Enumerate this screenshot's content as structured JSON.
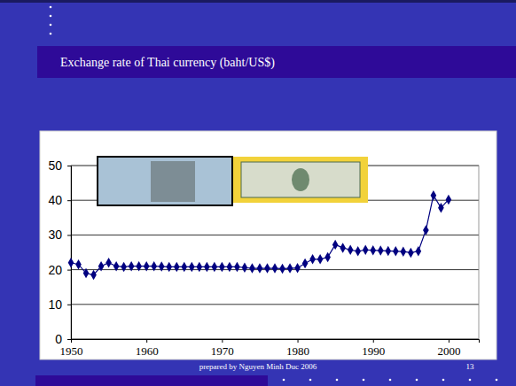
{
  "chart_data": {
    "type": "line",
    "title": "Exchange rate of Thai currency (baht/US$)",
    "x": [
      1950,
      1951,
      1952,
      1953,
      1954,
      1955,
      1956,
      1957,
      1958,
      1959,
      1960,
      1961,
      1962,
      1963,
      1964,
      1965,
      1966,
      1967,
      1968,
      1969,
      1970,
      1971,
      1972,
      1973,
      1974,
      1975,
      1976,
      1977,
      1978,
      1979,
      1980,
      1981,
      1982,
      1983,
      1984,
      1985,
      1986,
      1987,
      1988,
      1989,
      1990,
      1991,
      1992,
      1993,
      1994,
      1995,
      1996,
      1997,
      1998,
      1999,
      2000
    ],
    "values": [
      22,
      21.5,
      19,
      18.5,
      21,
      22,
      21,
      20.8,
      21,
      21,
      21,
      21,
      20.9,
      20.8,
      20.8,
      20.8,
      20.8,
      20.8,
      20.8,
      20.8,
      20.8,
      20.8,
      20.8,
      20.6,
      20.4,
      20.4,
      20.4,
      20.4,
      20.3,
      20.4,
      20.5,
      21.8,
      23,
      23,
      23.6,
      27.2,
      26.3,
      25.7,
      25.3,
      25.7,
      25.6,
      25.5,
      25.4,
      25.3,
      25.2,
      24.9,
      25.3,
      31.4,
      41.4,
      37.8,
      40.2
    ],
    "color": "#000080",
    "marker": "diamond",
    "xlim": [
      1950,
      2004
    ],
    "ylim": [
      0,
      50
    ],
    "xticks": [
      1950,
      1960,
      1970,
      1980,
      1990,
      2000
    ],
    "yticks": [
      0,
      10,
      20,
      30,
      40,
      50
    ],
    "grid": true
  },
  "footer": {
    "text": "prepared by Nguyen Minh Duc 2006",
    "page_number": 13
  }
}
